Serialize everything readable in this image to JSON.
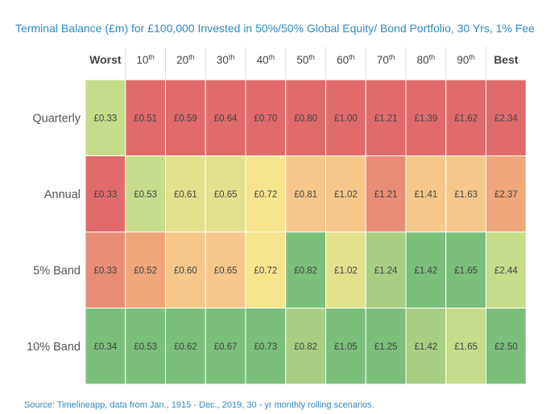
{
  "chart_title": "Terminal Balance (£m) for £100,000 Invested in 50%/50% Global Equity/ Bond Portfolio, 30 Yrs, 1% Fee",
  "source": "Source: Timelineapp, data from Jan., 1915 - Dec., 2019, 30 - yr monthly rolling scenarios.",
  "colors": {
    "red": "#e06b6b",
    "salmon": "#e88d76",
    "orange": "#f0a57a",
    "peach": "#f5c88a",
    "yellow": "#f7e58e",
    "yellowgreen": "#e3e28c",
    "lightgreen": "#c6dc8a",
    "midgreen": "#a6cf84",
    "green": "#7bbf7b"
  },
  "chart_data": {
    "type": "heatmap",
    "columns": [
      {
        "label": "Worst"
      },
      {
        "label": "10",
        "sup": "th"
      },
      {
        "label": "20",
        "sup": "th"
      },
      {
        "label": "30",
        "sup": "th"
      },
      {
        "label": "40",
        "sup": "th"
      },
      {
        "label": "50",
        "sup": "th"
      },
      {
        "label": "60",
        "sup": "th"
      },
      {
        "label": "70",
        "sup": "th"
      },
      {
        "label": "80",
        "sup": "th"
      },
      {
        "label": "90",
        "sup": "th"
      },
      {
        "label": "Best"
      }
    ],
    "rows": [
      {
        "label": "Quarterly",
        "values": [
          "£0.33",
          "£0.51",
          "£0.59",
          "£0.64",
          "£0.70",
          "£0.80",
          "£1.00",
          "£1.21",
          "£1.39",
          "£1.62",
          "£2.34"
        ],
        "colors": [
          "lightgreen",
          "red",
          "red",
          "red",
          "red",
          "red",
          "red",
          "red",
          "red",
          "red",
          "red"
        ]
      },
      {
        "label": "Annual",
        "values": [
          "£0.33",
          "£0.53",
          "£0.61",
          "£0.65",
          "£0.72",
          "£0.81",
          "£1.02",
          "£1.21",
          "£1.41",
          "£1.63",
          "£2.37"
        ],
        "colors": [
          "red",
          "lightgreen",
          "yellowgreen",
          "yellowgreen",
          "yellow",
          "peach",
          "peach",
          "salmon",
          "peach",
          "peach",
          "orange"
        ]
      },
      {
        "label": "5% Band",
        "values": [
          "£0.33",
          "£0.52",
          "£0.60",
          "£0.65",
          "£0.72",
          "£0.82",
          "£1.02",
          "£1.24",
          "£1.42",
          "£1.65",
          "£2.44"
        ],
        "colors": [
          "salmon",
          "orange",
          "peach",
          "peach",
          "yellow",
          "green",
          "yellowgreen",
          "midgreen",
          "green",
          "green",
          "lightgreen"
        ]
      },
      {
        "label": "10% Band",
        "values": [
          "£0.34",
          "£0.53",
          "£0.62",
          "£0.67",
          "£0.73",
          "£0.82",
          "£1.05",
          "£1.25",
          "£1.42",
          "£1.65",
          "£2.50"
        ],
        "colors": [
          "green",
          "green",
          "green",
          "green",
          "green",
          "midgreen",
          "green",
          "green",
          "midgreen",
          "lightgreen",
          "green"
        ]
      }
    ]
  }
}
